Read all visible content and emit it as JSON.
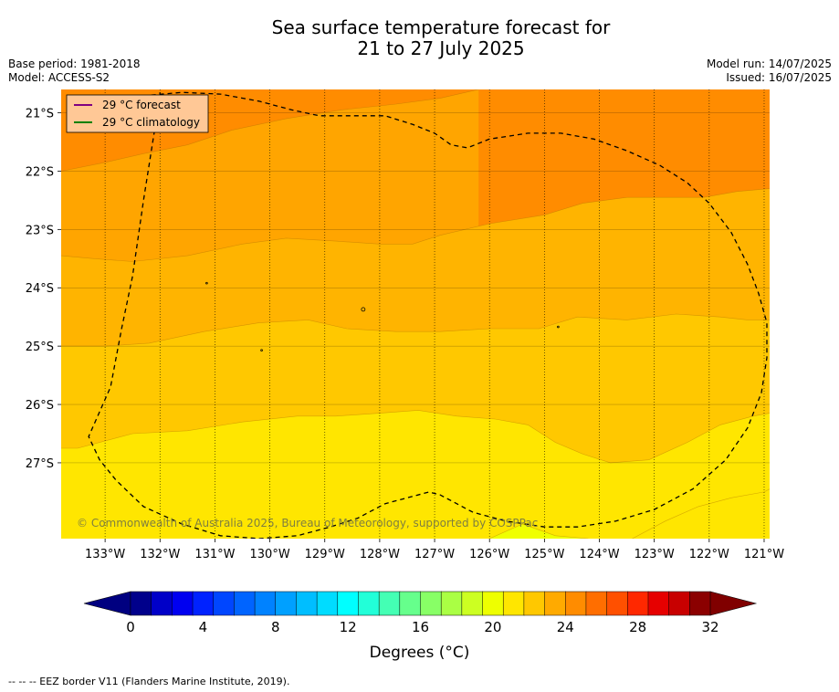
{
  "title": {
    "line1": "Sea surface temperature forecast for",
    "line2": "21 to 27 July 2025"
  },
  "meta": {
    "base_period": "Base period: 1981-2018",
    "model": "Model: ACCESS-S2",
    "model_run": "Model run: 14/07/2025",
    "issued": "Issued: 16/07/2025"
  },
  "legend": {
    "forecast": "29 °C  forecast",
    "climatology": "29 °C  climatology",
    "forecast_color": "#800080",
    "climatology_color": "#008000"
  },
  "watermark": "© Commonwealth of Australia 2025, Bureau of Meteorology, supported by COSPPac",
  "colorbar": {
    "label": "Degrees (°C)",
    "ticks": [
      "0",
      "4",
      "8",
      "12",
      "16",
      "20",
      "24",
      "28",
      "32"
    ],
    "colors": [
      "#00008b",
      "#0000c8",
      "#0000f0",
      "#0022ff",
      "#0046ff",
      "#0064ff",
      "#0082ff",
      "#00a0ff",
      "#00beff",
      "#00dcff",
      "#00ffff",
      "#22ffd8",
      "#44ffb4",
      "#66ff8c",
      "#88ff66",
      "#aaff44",
      "#ccff22",
      "#eeff00",
      "#ffe600",
      "#ffc800",
      "#ffaa00",
      "#ff8c00",
      "#ff6e00",
      "#ff5000",
      "#ff2800",
      "#e60000",
      "#c80000",
      "#8b0000"
    ]
  },
  "footer": "--  --  -- EEZ border V11 (Flanders Marine Institute, 2019).",
  "chart_data": {
    "type": "heatmap",
    "variable": "Sea surface temperature (°C)",
    "contour_interval": 1,
    "xlim": [
      -133.8,
      -120.9
    ],
    "ylim": [
      -28.3,
      -20.6
    ],
    "x_ticks": [
      "133°W",
      "132°W",
      "131°W",
      "130°W",
      "129°W",
      "128°W",
      "127°W",
      "126°W",
      "125°W",
      "124°W",
      "123°W",
      "122°W",
      "121°W"
    ],
    "y_ticks": [
      "21°S",
      "22°S",
      "23°S",
      "24°S",
      "25°S",
      "26°S",
      "27°S"
    ],
    "grid": true,
    "legend_placement": "top-left",
    "levels": [
      {
        "range": "27-28",
        "color": "#ff8c00"
      },
      {
        "range": "26-27",
        "color": "#ffa500"
      },
      {
        "range": "25-26",
        "color": "#ffb400"
      },
      {
        "range": "24-25",
        "color": "#ffc800"
      },
      {
        "range": "23-24",
        "color": "#ffe600"
      },
      {
        "range": "22-23",
        "color": "#f0ff00"
      }
    ],
    "contours": [
      {
        "level": 27,
        "points": [
          [
            -133.8,
            -22.0
          ],
          [
            -133,
            -21.85
          ],
          [
            -132.3,
            -21.7
          ],
          [
            -131.5,
            -21.55
          ],
          [
            -130.7,
            -21.3
          ],
          [
            -129.7,
            -21.1
          ],
          [
            -128.7,
            -20.95
          ],
          [
            -127.7,
            -20.85
          ],
          [
            -126.9,
            -20.75
          ],
          [
            -126.2,
            -20.6
          ]
        ]
      },
      {
        "level": 26,
        "points": [
          [
            -133.8,
            -23.45
          ],
          [
            -133.2,
            -23.5
          ],
          [
            -132.5,
            -23.55
          ],
          [
            -131.5,
            -23.45
          ],
          [
            -130.5,
            -23.25
          ],
          [
            -129.7,
            -23.15
          ],
          [
            -128.8,
            -23.2
          ],
          [
            -128,
            -23.25
          ],
          [
            -127.4,
            -23.25
          ],
          [
            -126.9,
            -23.1
          ],
          [
            -126,
            -22.9
          ],
          [
            -125,
            -22.75
          ],
          [
            -124.3,
            -22.55
          ],
          [
            -123.5,
            -22.45
          ],
          [
            -122.8,
            -22.45
          ],
          [
            -122.1,
            -22.45
          ],
          [
            -121.5,
            -22.35
          ],
          [
            -120.9,
            -22.3
          ]
        ]
      },
      {
        "level": 25,
        "points": [
          [
            -133.8,
            -25.0
          ],
          [
            -133,
            -25.0
          ],
          [
            -132.2,
            -24.95
          ],
          [
            -131.2,
            -24.75
          ],
          [
            -130.2,
            -24.6
          ],
          [
            -129.3,
            -24.55
          ],
          [
            -128.6,
            -24.7
          ],
          [
            -127.7,
            -24.75
          ],
          [
            -126.9,
            -24.75
          ],
          [
            -126,
            -24.7
          ],
          [
            -125.1,
            -24.7
          ],
          [
            -124.4,
            -24.5
          ],
          [
            -123.5,
            -24.55
          ],
          [
            -122.6,
            -24.45
          ],
          [
            -121.8,
            -24.5
          ],
          [
            -121.3,
            -24.55
          ],
          [
            -120.9,
            -24.55
          ]
        ]
      },
      {
        "level": 24,
        "points": [
          [
            -133.8,
            -26.75
          ],
          [
            -133.5,
            -26.75
          ],
          [
            -132.5,
            -26.5
          ],
          [
            -131.5,
            -26.45
          ],
          [
            -130.5,
            -26.3
          ],
          [
            -129.5,
            -26.2
          ],
          [
            -128.8,
            -26.2
          ],
          [
            -128,
            -26.15
          ],
          [
            -127.3,
            -26.1
          ],
          [
            -126.6,
            -26.2
          ],
          [
            -125.9,
            -26.25
          ],
          [
            -125.3,
            -26.35
          ],
          [
            -124.8,
            -26.65
          ],
          [
            -124.3,
            -26.85
          ],
          [
            -123.8,
            -27.0
          ],
          [
            -123.1,
            -26.95
          ],
          [
            -122.4,
            -26.65
          ],
          [
            -121.8,
            -26.35
          ],
          [
            -121.2,
            -26.2
          ],
          [
            -120.9,
            -26.15
          ]
        ]
      },
      {
        "level": 23,
        "points": [
          [
            -126.0,
            -28.3
          ],
          [
            -125.4,
            -28.05
          ],
          [
            -124.8,
            -28.25
          ],
          [
            -124.2,
            -28.3
          ]
        ]
      },
      {
        "level": 22,
        "points": [
          [
            -123.4,
            -28.3
          ],
          [
            -122.8,
            -28.0
          ],
          [
            -122.2,
            -27.75
          ],
          [
            -121.6,
            -27.6
          ],
          [
            -121.0,
            -27.5
          ],
          [
            -120.9,
            -27.45
          ]
        ]
      }
    ],
    "eez_border": [
      [
        -132.9,
        -20.8
      ],
      [
        -132.6,
        -20.75
      ],
      [
        -132.2,
        -20.7
      ],
      [
        -131.6,
        -20.65
      ],
      [
        -130.9,
        -20.68
      ],
      [
        -130.2,
        -20.8
      ],
      [
        -129.6,
        -20.95
      ],
      [
        -129.1,
        -21.05
      ],
      [
        -128.5,
        -21.05
      ],
      [
        -127.9,
        -21.05
      ],
      [
        -127.4,
        -21.2
      ],
      [
        -127.0,
        -21.35
      ],
      [
        -126.7,
        -21.55
      ],
      [
        -126.4,
        -21.6
      ],
      [
        -126.0,
        -21.45
      ],
      [
        -125.3,
        -21.35
      ],
      [
        -124.7,
        -21.35
      ],
      [
        -124.1,
        -21.45
      ],
      [
        -123.5,
        -21.65
      ],
      [
        -122.9,
        -21.9
      ],
      [
        -122.4,
        -22.2
      ],
      [
        -122.0,
        -22.55
      ],
      [
        -121.6,
        -23.05
      ],
      [
        -121.3,
        -23.6
      ],
      [
        -121.1,
        -24.1
      ],
      [
        -120.95,
        -24.6
      ],
      [
        -120.95,
        -25.2
      ],
      [
        -121.05,
        -25.8
      ],
      [
        -121.3,
        -26.4
      ],
      [
        -121.7,
        -26.95
      ],
      [
        -122.3,
        -27.45
      ],
      [
        -123.0,
        -27.8
      ],
      [
        -123.7,
        -28.0
      ],
      [
        -124.4,
        -28.1
      ],
      [
        -125.0,
        -28.1
      ],
      [
        -125.7,
        -28.0
      ],
      [
        -126.3,
        -27.85
      ],
      [
        -126.9,
        -27.55
      ],
      [
        -127.1,
        -27.5
      ],
      [
        -127.5,
        -27.6
      ],
      [
        -127.9,
        -27.7
      ],
      [
        -128.4,
        -27.95
      ],
      [
        -128.9,
        -28.1
      ],
      [
        -129.5,
        -28.25
      ],
      [
        -130.2,
        -28.3
      ],
      [
        -130.9,
        -28.25
      ],
      [
        -131.6,
        -28.05
      ],
      [
        -132.3,
        -27.75
      ],
      [
        -132.8,
        -27.3
      ],
      [
        -133.1,
        -26.95
      ],
      [
        -133.3,
        -26.55
      ],
      [
        -132.9,
        -25.7
      ],
      [
        -132.7,
        -24.7
      ],
      [
        -132.5,
        -23.8
      ],
      [
        -132.3,
        -22.5
      ],
      [
        -132.1,
        -21.3
      ],
      [
        -132.0,
        -20.65
      ]
    ],
    "islands": [
      [
        -128.3,
        -24.37
      ],
      [
        -130.15,
        -25.07
      ],
      [
        -131.15,
        -23.92
      ],
      [
        -124.75,
        -24.67
      ]
    ]
  }
}
